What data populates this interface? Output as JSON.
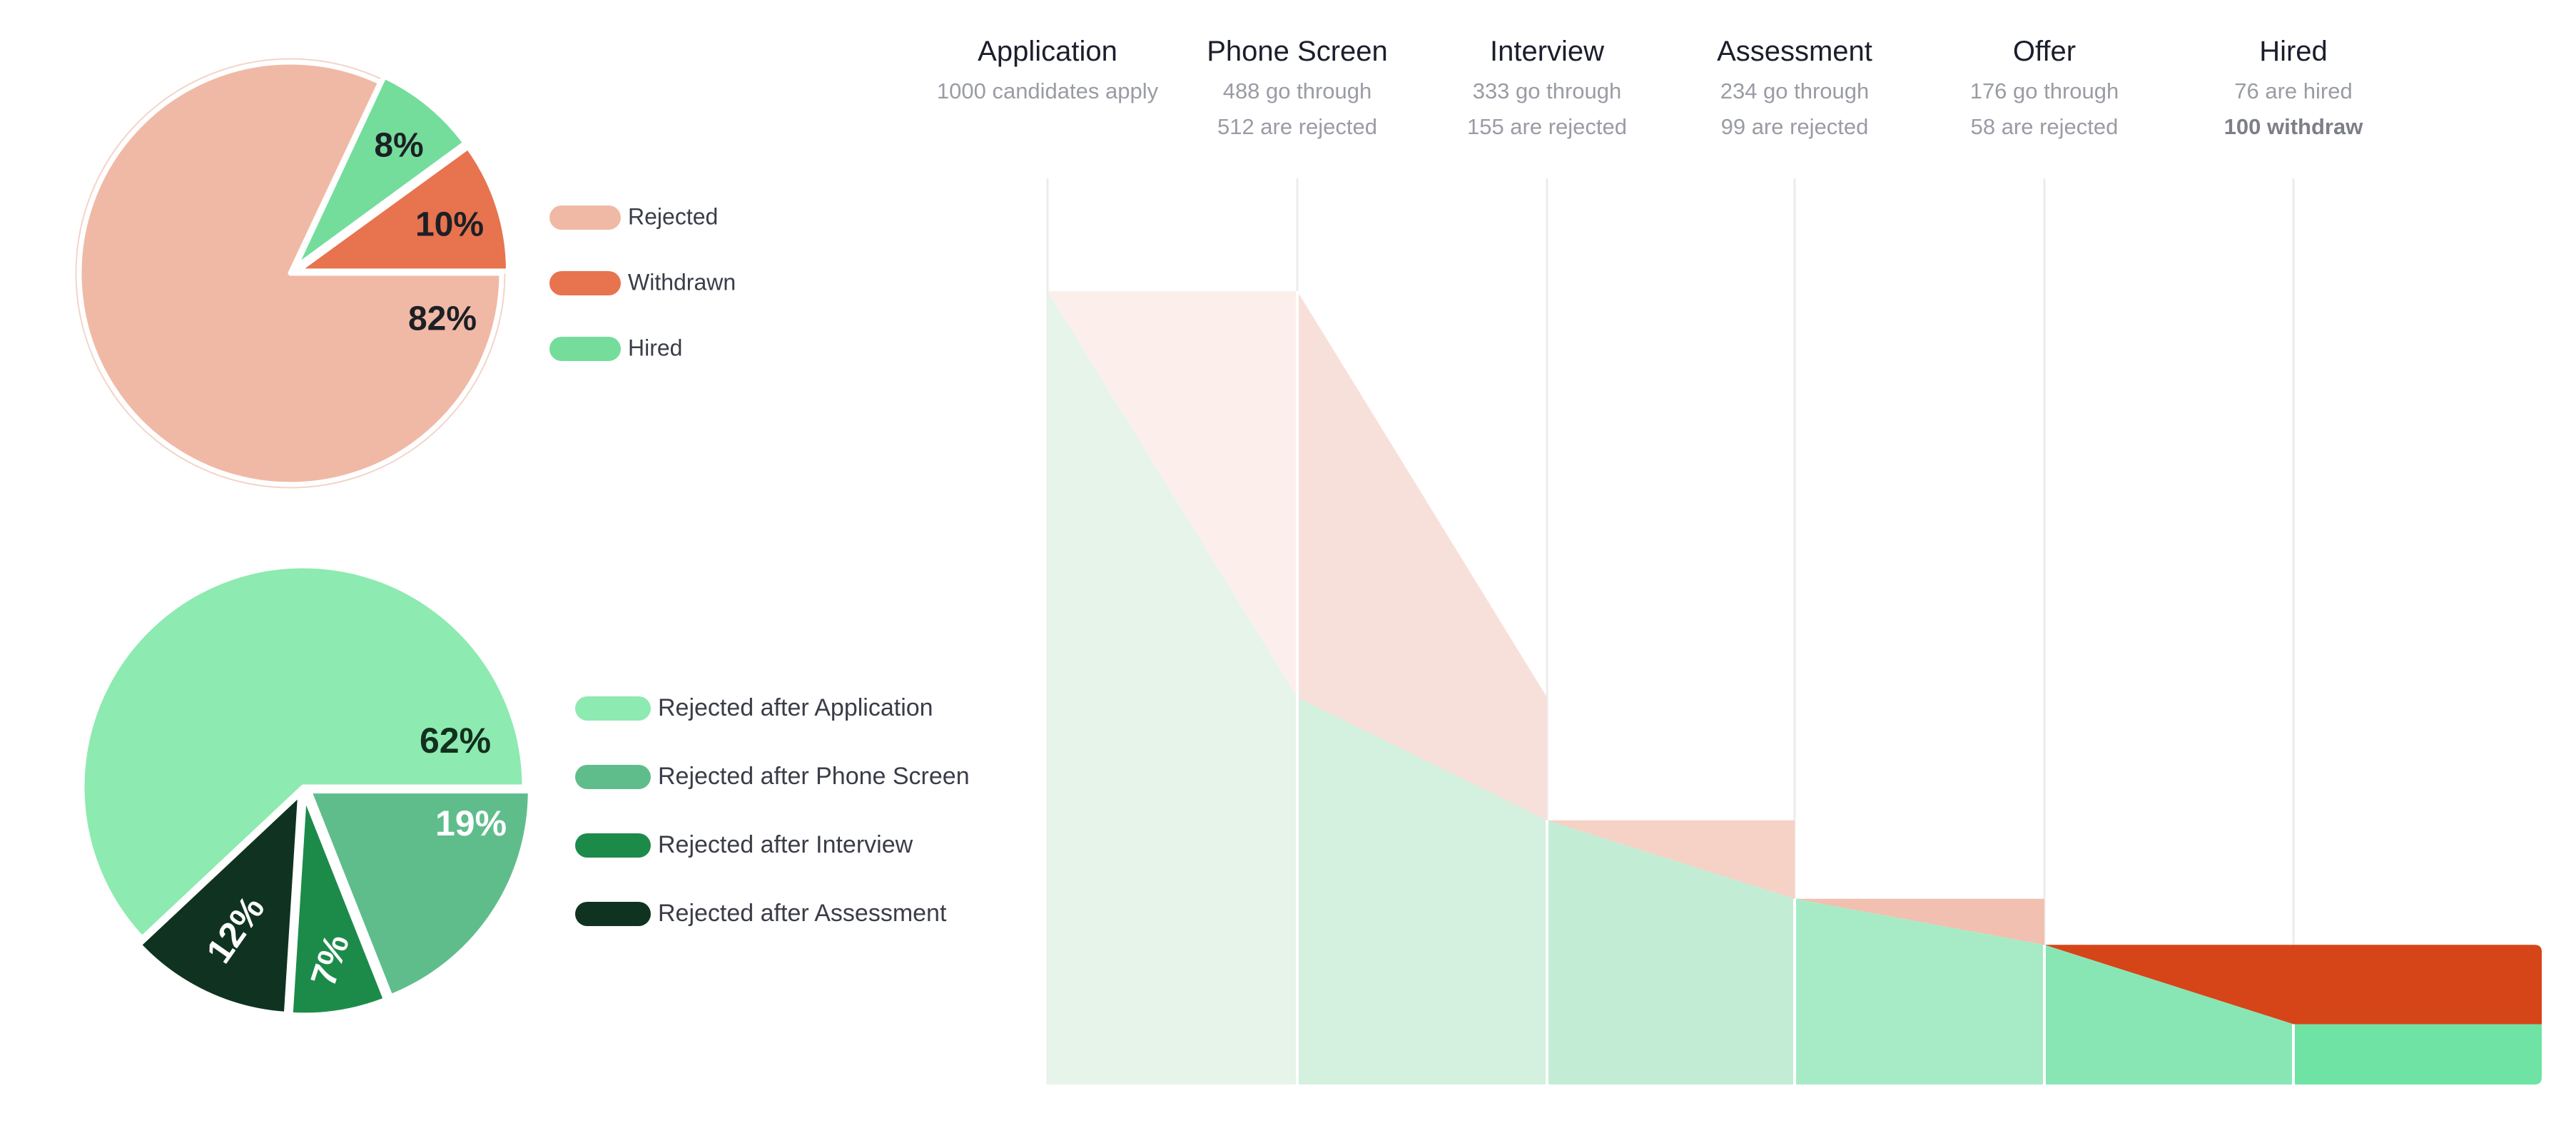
{
  "palette": {
    "rejected": "#f0b9a6",
    "withdrawn": "#e8734f",
    "hired": "#74dd9c",
    "rej_application": "#8deab0",
    "rej_phone": "#5fbd8c",
    "rej_interview": "#1c8b4a",
    "rej_assessment": "#0f3320",
    "funnel_withdrawn": "#d64518",
    "funnel_hired": "#6ee3a4"
  },
  "chart_data": [
    {
      "type": "pie",
      "slices": [
        {
          "label": "Rejected",
          "value": 82,
          "text": "82%",
          "color": "#f0b9a6"
        },
        {
          "label": "Withdrawn",
          "value": 10,
          "text": "10%",
          "color": "#e8734f"
        },
        {
          "label": "Hired",
          "value": 8,
          "text": "8%",
          "color": "#74dd9c"
        }
      ],
      "legend": [
        "Rejected",
        "Withdrawn",
        "Hired"
      ],
      "legend_placement": "right"
    },
    {
      "type": "pie",
      "slices": [
        {
          "label": "Rejected after Application",
          "value": 62,
          "text": "62%",
          "color": "#8deab0"
        },
        {
          "label": "Rejected after Phone Screen",
          "value": 19,
          "text": "19%",
          "color": "#5fbd8c"
        },
        {
          "label": "Rejected after Interview",
          "value": 7,
          "text": "7%",
          "color": "#1c8b4a"
        },
        {
          "label": "Rejected after Assessment",
          "value": 12,
          "text": "12%",
          "color": "#0f3320"
        }
      ],
      "legend": [
        "Rejected after Application",
        "Rejected after Phone Screen",
        "Rejected after Interview",
        "Rejected after Assessment"
      ],
      "legend_placement": "right"
    },
    {
      "type": "area",
      "stages": [
        {
          "name": "Application",
          "line1": "1000 candidates apply",
          "line2": ""
        },
        {
          "name": "Phone Screen",
          "line1": "488 go through",
          "line2": "512 are rejected"
        },
        {
          "name": "Interview",
          "line1": "333 go through",
          "line2": "155 are rejected"
        },
        {
          "name": "Assessment",
          "line1": "234 go through",
          "line2": "99 are rejected"
        },
        {
          "name": "Offer",
          "line1": "176 go through",
          "line2": "58 are rejected"
        },
        {
          "name": "Hired",
          "line1": "76 are hired",
          "line2": "100 withdraw"
        }
      ],
      "counts": [
        1000,
        488,
        333,
        234,
        176,
        76
      ],
      "withdrawn": 100,
      "ylim": [
        0,
        1000
      ]
    }
  ]
}
